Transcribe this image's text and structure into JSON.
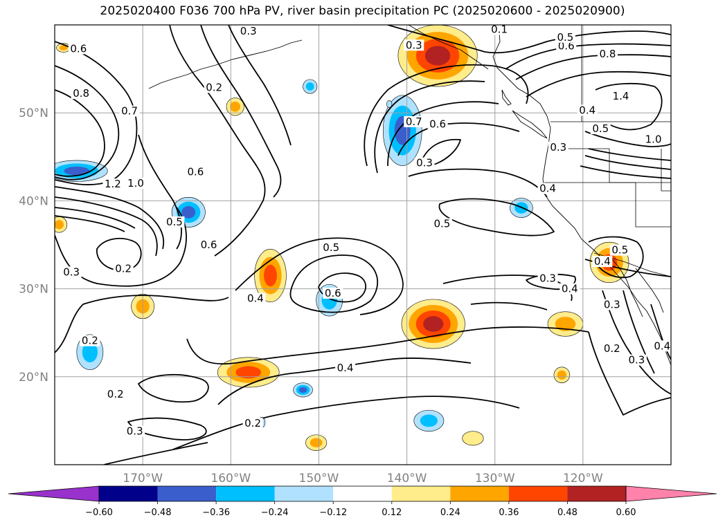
{
  "map": {
    "title": "2025020400 F036 700 hPa PV, river basin precipitation PC (2025020600 - 2025020900)",
    "projection": "PlateCarree",
    "extent": {
      "lon_min": -180,
      "lon_max": -110,
      "lat_min": 10,
      "lat_max": 60
    },
    "grid": true,
    "lat_ticks": [
      {
        "value": 20,
        "label": "20°N"
      },
      {
        "value": 30,
        "label": "30°N"
      },
      {
        "value": 40,
        "label": "40°N"
      },
      {
        "value": 50,
        "label": "50°N"
      }
    ],
    "lon_ticks": [
      {
        "value": -170,
        "label": "170°W"
      },
      {
        "value": -160,
        "label": "160°W"
      },
      {
        "value": -150,
        "label": "150°W"
      },
      {
        "value": -140,
        "label": "140°W"
      },
      {
        "value": -130,
        "label": "130°W"
      },
      {
        "value": -120,
        "label": "120°W"
      }
    ],
    "contour_labels": [
      {
        "text": "0.6",
        "lon": -177.3,
        "lat": 57.3
      },
      {
        "text": "0.8",
        "lon": -177.0,
        "lat": 52.2
      },
      {
        "text": "0.7",
        "lon": -171.5,
        "lat": 50.2
      },
      {
        "text": "1.0",
        "lon": -170.8,
        "lat": 42.0
      },
      {
        "text": "1.2",
        "lon": -173.4,
        "lat": 41.9
      },
      {
        "text": "0.6",
        "lon": -164.0,
        "lat": 43.3
      },
      {
        "text": "0.5",
        "lon": -166.4,
        "lat": 37.6
      },
      {
        "text": "0.6",
        "lon": -162.5,
        "lat": 35.0
      },
      {
        "text": "0.3",
        "lon": -178.1,
        "lat": 31.9
      },
      {
        "text": "0.2",
        "lon": -172.2,
        "lat": 32.3
      },
      {
        "text": "0.2",
        "lon": -176.0,
        "lat": 24.1
      },
      {
        "text": "0.2",
        "lon": -161.9,
        "lat": 52.9
      },
      {
        "text": "0.3",
        "lon": -158.0,
        "lat": 59.3
      },
      {
        "text": "0.4",
        "lon": -157.2,
        "lat": 28.9
      },
      {
        "text": "0.5",
        "lon": -148.6,
        "lat": 34.7
      },
      {
        "text": "0.6",
        "lon": -148.4,
        "lat": 29.5
      },
      {
        "text": "0.4",
        "lon": -147.0,
        "lat": 21.0
      },
      {
        "text": "0.2",
        "lon": -157.5,
        "lat": 14.7
      },
      {
        "text": "0.3",
        "lon": -170.9,
        "lat": 13.8
      },
      {
        "text": "0.2",
        "lon": -173.1,
        "lat": 18.0
      },
      {
        "text": "0.3",
        "lon": -139.2,
        "lat": 57.7
      },
      {
        "text": "0.7",
        "lon": -139.2,
        "lat": 49.0
      },
      {
        "text": "0.6",
        "lon": -136.5,
        "lat": 48.7
      },
      {
        "text": "0.3",
        "lon": -138.0,
        "lat": 44.3
      },
      {
        "text": "0.5",
        "lon": -136.0,
        "lat": 37.4
      },
      {
        "text": "0.4",
        "lon": -121.5,
        "lat": 30.0
      },
      {
        "text": "0.3",
        "lon": -124.0,
        "lat": 31.2
      },
      {
        "text": "0.3",
        "lon": -122.8,
        "lat": 46.1
      },
      {
        "text": "0.4",
        "lon": -124.0,
        "lat": 41.4
      },
      {
        "text": "0.8",
        "lon": -117.2,
        "lat": 56.7
      },
      {
        "text": "0.6",
        "lon": -121.9,
        "lat": 57.6
      },
      {
        "text": "0.5",
        "lon": -122.0,
        "lat": 58.6
      },
      {
        "text": "0.4",
        "lon": -119.5,
        "lat": 50.3
      },
      {
        "text": "0.5",
        "lon": -118.0,
        "lat": 48.2
      },
      {
        "text": "1.0",
        "lon": -112.0,
        "lat": 47.0
      },
      {
        "text": "1.4",
        "lon": -115.7,
        "lat": 51.9
      },
      {
        "text": "0.5",
        "lon": -115.8,
        "lat": 34.4
      },
      {
        "text": "0.4",
        "lon": -117.8,
        "lat": 33.1
      },
      {
        "text": "0.3",
        "lon": -116.7,
        "lat": 28.2
      },
      {
        "text": "0.2",
        "lon": -116.7,
        "lat": 23.2
      },
      {
        "text": "0.3",
        "lon": -113.9,
        "lat": 21.9
      },
      {
        "text": "0.4",
        "lon": -111.0,
        "lat": 23.5
      },
      {
        "text": "0.1",
        "lon": -129.5,
        "lat": 59.5
      }
    ]
  },
  "colorbar": {
    "extend": "both",
    "ticks": [
      "−0.60",
      "−0.48",
      "−0.36",
      "−0.24",
      "−0.12",
      "0.12",
      "0.24",
      "0.36",
      "0.48",
      "0.60"
    ],
    "bins": [
      {
        "from": null,
        "to": -0.6,
        "color": "#9932CC"
      },
      {
        "from": -0.6,
        "to": -0.48,
        "color": "#00008B"
      },
      {
        "from": -0.48,
        "to": -0.36,
        "color": "#3A5FCD"
      },
      {
        "from": -0.36,
        "to": -0.24,
        "color": "#00BFFF"
      },
      {
        "from": -0.24,
        "to": -0.12,
        "color": "#B0E2FF"
      },
      {
        "from": -0.12,
        "to": 0.12,
        "color": "#FFFFFF"
      },
      {
        "from": 0.12,
        "to": 0.24,
        "color": "#FFEC8B"
      },
      {
        "from": 0.24,
        "to": 0.36,
        "color": "#FFA500"
      },
      {
        "from": 0.36,
        "to": 0.48,
        "color": "#FF4500"
      },
      {
        "from": 0.48,
        "to": 0.6,
        "color": "#B22222"
      },
      {
        "from": 0.6,
        "to": null,
        "color": "#FF82AB"
      }
    ]
  },
  "precip_blobs": [
    {
      "lon": -136.5,
      "lat": 56.5,
      "rx": 4.5,
      "ry": 3.5,
      "values": [
        0.18,
        0.3,
        0.42,
        0.52
      ]
    },
    {
      "lon": -179.0,
      "lat": 57.4,
      "rx": 0.8,
      "ry": 0.5,
      "values": [
        0.18,
        0.3
      ]
    },
    {
      "lon": -159.5,
      "lat": 50.7,
      "rx": 1.0,
      "ry": 1.0,
      "values": [
        0.18,
        0.3
      ]
    },
    {
      "lon": -151.0,
      "lat": 53.0,
      "rx": 0.8,
      "ry": 0.8,
      "values": [
        -0.18,
        -0.3
      ]
    },
    {
      "lon": -140.5,
      "lat": 48.0,
      "rx": 2.2,
      "ry": 4.0,
      "values": [
        -0.18,
        -0.3,
        -0.42
      ]
    },
    {
      "lon": -177.5,
      "lat": 43.4,
      "rx": 3.5,
      "ry": 1.2,
      "values": [
        -0.18,
        -0.3,
        -0.42
      ]
    },
    {
      "lon": -164.8,
      "lat": 38.7,
      "rx": 1.9,
      "ry": 1.7,
      "values": [
        -0.18,
        -0.3,
        -0.42
      ]
    },
    {
      "lon": -179.5,
      "lat": 37.3,
      "rx": 0.9,
      "ry": 0.9,
      "values": [
        0.18,
        0.3
      ]
    },
    {
      "lon": -155.5,
      "lat": 31.5,
      "rx": 1.8,
      "ry": 3.0,
      "values": [
        0.18,
        0.3,
        0.42
      ]
    },
    {
      "lon": -148.8,
      "lat": 28.7,
      "rx": 1.5,
      "ry": 1.8,
      "values": [
        -0.18,
        -0.3
      ]
    },
    {
      "lon": -170.0,
      "lat": 28.0,
      "rx": 1.3,
      "ry": 1.4,
      "values": [
        0.18,
        0.3
      ]
    },
    {
      "lon": -176.0,
      "lat": 22.8,
      "rx": 1.5,
      "ry": 2.0,
      "values": [
        -0.18,
        -0.3
      ]
    },
    {
      "lon": -137.0,
      "lat": 26.0,
      "rx": 3.6,
      "ry": 2.8,
      "values": [
        0.18,
        0.3,
        0.42,
        0.52
      ]
    },
    {
      "lon": -122.0,
      "lat": 26.0,
      "rx": 2.0,
      "ry": 1.4,
      "values": [
        0.18,
        0.3
      ]
    },
    {
      "lon": -117.0,
      "lat": 33.0,
      "rx": 2.2,
      "ry": 2.3,
      "values": [
        0.18,
        0.3,
        0.42
      ]
    },
    {
      "lon": -158.0,
      "lat": 20.5,
      "rx": 3.5,
      "ry": 1.7,
      "values": [
        0.18,
        0.3,
        0.42
      ]
    },
    {
      "lon": -151.8,
      "lat": 18.5,
      "rx": 1.1,
      "ry": 0.8,
      "values": [
        -0.18,
        -0.3,
        -0.42
      ]
    },
    {
      "lon": -137.5,
      "lat": 15.0,
      "rx": 1.7,
      "ry": 1.2,
      "values": [
        -0.18,
        -0.3
      ]
    },
    {
      "lon": -150.3,
      "lat": 12.5,
      "rx": 1.2,
      "ry": 0.9,
      "values": [
        0.18,
        0.3
      ]
    },
    {
      "lon": -122.4,
      "lat": 20.2,
      "rx": 0.9,
      "ry": 0.9,
      "values": [
        0.18,
        0.3
      ]
    },
    {
      "lon": -132.5,
      "lat": 13.0,
      "rx": 1.2,
      "ry": 0.8,
      "values": [
        0.18
      ]
    },
    {
      "lon": -156.5,
      "lat": 14.8,
      "rx": 0.4,
      "ry": 0.6,
      "values": [
        -0.18
      ]
    },
    {
      "lon": -127.0,
      "lat": 39.2,
      "rx": 1.3,
      "ry": 1.1,
      "values": [
        -0.18,
        -0.3
      ]
    },
    {
      "lon": -142.0,
      "lat": 51.0,
      "rx": 0.3,
      "ry": 0.4,
      "values": [
        -0.18
      ]
    }
  ]
}
